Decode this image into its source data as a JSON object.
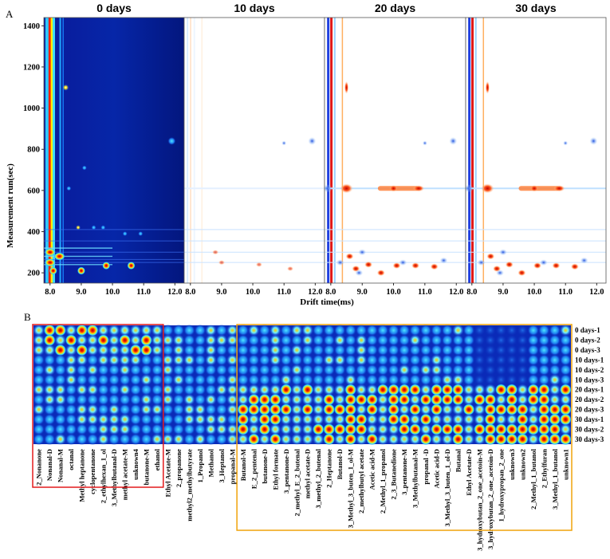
{
  "chart_data": [
    {
      "panel": "A",
      "type": "heatmap",
      "subplots": [
        {
          "title": "0 days",
          "kind": "raw"
        },
        {
          "title": "10 days",
          "kind": "difference"
        },
        {
          "title": "20 days",
          "kind": "difference"
        },
        {
          "title": "30 days",
          "kind": "difference"
        }
      ],
      "xlabel": "Drift time(ms)",
      "ylabel": "Measurement run(sec)",
      "x_ticks": [
        "8.0",
        "9.0",
        "10.0",
        "11.0",
        "12.0"
      ],
      "y_ticks": [
        "200",
        "400",
        "600",
        "800",
        "1000",
        "1200",
        "1400"
      ],
      "xlim": [
        7.8,
        12.3
      ],
      "ylim": [
        150,
        1440
      ]
    },
    {
      "panel": "B",
      "type": "heatmap",
      "rows": [
        "0 days-1",
        "0 days-2",
        "0 days-3",
        "10 days-1",
        "10 days-2",
        "10 days-3",
        "20 days-1",
        "20 days-2",
        "20 days-3",
        "30 days-1",
        "30 days-2",
        "30 days-3"
      ],
      "columns": [
        "2_Nonanone",
        "Nonanal-D",
        "Nonanal-M",
        "octanal",
        "Methyl heptanone",
        "cyclopentanone",
        "2_ethylhexan_1_ol",
        "3_Methylbutanal-D",
        "methyl acetate-M",
        "unknown4",
        "butanone-M",
        "ethanol",
        "Ethyl Acetate-M",
        "2_propanone",
        "methyl2_methylbutyrate",
        "1_Propanol",
        "Methanol",
        "3_Heptanol",
        "propanal-M",
        "Butanol-M",
        "E_2_pentenal",
        "butanone-D",
        "Ethyl formate",
        "3_pentanone-D",
        "2_methyl_E_2_butenal",
        "methyl acetate-D",
        "3_methyl_2_butenal",
        "2_Heptanone",
        "Butanol-D",
        "3_Methyl_3_buten_1_ol-M",
        "2_methylbutyl acetate",
        "Acetic acid-M",
        "2_Methyl_1_propanol",
        "2_3_Butanedione",
        "3_pentanone-M",
        "3_Methylbutanal-M",
        "propanal -D",
        "Acetic acid-D",
        "3_Methyl_3_buten_1_ol-D",
        "Butanal",
        "Ethyl Acetate-D",
        "3_hydroxybutan_2_one_acetoin-M",
        "3_hydroxybutan_2_one_acetoin-D",
        "1_hydroxypropan_2_one",
        "unknown3",
        "unknown2",
        "2_Methyl_1_butanol",
        "2_Ethylfuran",
        "3_Methyl_1_butanol",
        "unknown1"
      ],
      "groups": [
        {
          "box_color": "#e31a1c",
          "first_column": 0,
          "last_column": 11
        },
        {
          "box_color": "#f0a30a",
          "first_column": 19,
          "last_column": 49
        }
      ]
    }
  ],
  "panel_labels": {
    "a": "A",
    "b": "B"
  }
}
